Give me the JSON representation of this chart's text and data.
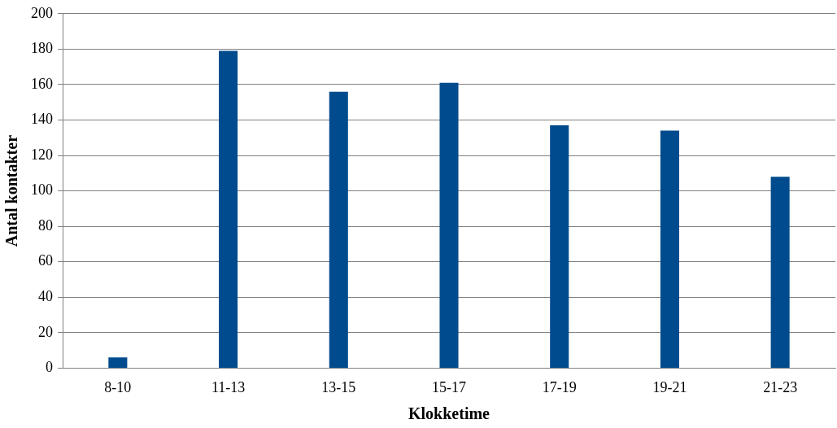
{
  "chart_data": {
    "type": "bar",
    "xlabel": "Klokketime",
    "ylabel": "Antal kontakter",
    "categories": [
      "8-10",
      "11-13",
      "13-15",
      "15-17",
      "17-19",
      "19-21",
      "21-23"
    ],
    "values": [
      6,
      179,
      156,
      161,
      137,
      134,
      108
    ],
    "color": "#004b8d",
    "ylim": [
      0,
      200
    ],
    "yticks": [
      0,
      20,
      40,
      60,
      80,
      100,
      120,
      140,
      160,
      180,
      200
    ],
    "grid": "y"
  }
}
